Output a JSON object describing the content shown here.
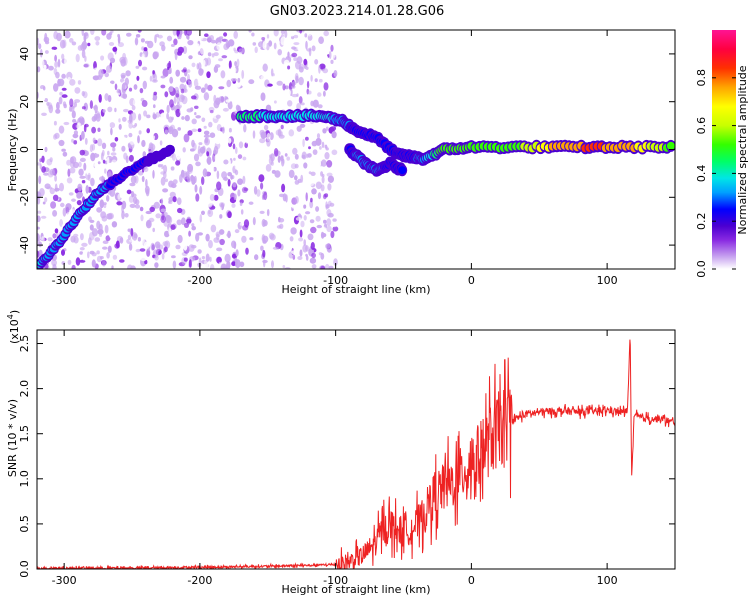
{
  "title": "GN03.2023.214.01.28.G06",
  "chart_data": [
    {
      "type": "heatmap",
      "xlabel": "Height of straight line (km)",
      "ylabel": "Frequency (Hz)",
      "xlim": [
        -320,
        150
      ],
      "ylim": [
        -50,
        50
      ],
      "xticks": [
        -300,
        -200,
        -100,
        0,
        100
      ],
      "yticks": [
        -40,
        -20,
        0,
        20,
        40
      ],
      "colorbar": {
        "label": "Normalized spectral amplitude",
        "range": [
          0,
          1
        ],
        "ticks": [
          "0.0",
          "0.2",
          "0.4",
          "0.6",
          "0.8"
        ],
        "colors": [
          "#ffffff",
          "#c9a6f0",
          "#8a2be2",
          "#4b00d1",
          "#0000ff",
          "#00a0ff",
          "#00e6e6",
          "#00ff66",
          "#33ff00",
          "#c8ff00",
          "#ffff00",
          "#ffa500",
          "#ff3000",
          "#ff0040",
          "#ff1493"
        ]
      },
      "signal_track": [
        {
          "x": -170,
          "f": 14,
          "amp": 0.5
        },
        {
          "x": -150,
          "f": 14,
          "amp": 0.45
        },
        {
          "x": -130,
          "f": 14,
          "amp": 0.45
        },
        {
          "x": -110,
          "f": 14,
          "amp": 0.45
        },
        {
          "x": -95,
          "f": 12,
          "amp": 0.35
        },
        {
          "x": -85,
          "f": 8,
          "amp": 0.3
        },
        {
          "x": -70,
          "f": 5,
          "amp": 0.3
        },
        {
          "x": -55,
          "f": -2,
          "amp": 0.3
        },
        {
          "x": -45,
          "f": -3,
          "amp": 0.3
        },
        {
          "x": -35,
          "f": -4,
          "amp": 0.35
        },
        {
          "x": -20,
          "f": 0,
          "amp": 0.6
        },
        {
          "x": 0,
          "f": 1,
          "amp": 0.6
        },
        {
          "x": 30,
          "f": 1,
          "amp": 0.55
        },
        {
          "x": 60,
          "f": 1,
          "amp": 0.75
        },
        {
          "x": 90,
          "f": 1,
          "amp": 0.85
        },
        {
          "x": 120,
          "f": 1,
          "amp": 0.75
        },
        {
          "x": 150,
          "f": 1,
          "amp": 0.55
        }
      ],
      "secondary_track": [
        {
          "x": -90,
          "f": 0,
          "amp": 0.3
        },
        {
          "x": -80,
          "f": -5,
          "amp": 0.35
        },
        {
          "x": -70,
          "f": -9,
          "amp": 0.35
        },
        {
          "x": -60,
          "f": -6,
          "amp": 0.3
        },
        {
          "x": -50,
          "f": -9,
          "amp": 0.3
        }
      ],
      "rising_track": [
        {
          "x": -318,
          "f": -48,
          "amp": 0.4
        },
        {
          "x": -305,
          "f": -40,
          "amp": 0.35
        },
        {
          "x": -290,
          "f": -28,
          "amp": 0.35
        },
        {
          "x": -275,
          "f": -18,
          "amp": 0.35
        },
        {
          "x": -260,
          "f": -12,
          "amp": 0.3
        },
        {
          "x": -240,
          "f": -5,
          "amp": 0.25
        },
        {
          "x": -220,
          "f": 0,
          "amp": 0.2
        }
      ],
      "noise_region": [
        -320,
        -100
      ]
    },
    {
      "type": "line",
      "xlabel": "Height of straight line (km)",
      "ylabel": "SNR (10 * v/v)",
      "y_multiplier": "(x10",
      "y_multiplier_exp": "4",
      "y_multiplier_close": ")",
      "xlim": [
        -320,
        150
      ],
      "ylim": [
        0,
        2.65
      ],
      "xticks": [
        -300,
        -200,
        -100,
        0,
        100
      ],
      "yticks": [
        "0.0",
        "0.5",
        "1.0",
        "1.5",
        "2.0",
        "2.5"
      ],
      "series": [
        {
          "color": "#ee2222",
          "x": [
            -320,
            -250,
            -200,
            -150,
            -120,
            -100,
            -90,
            -80,
            -70,
            -65,
            -60,
            -55,
            -50,
            -45,
            -40,
            -35,
            -30,
            -25,
            -20,
            -15,
            -10,
            -5,
            0,
            5,
            10,
            15,
            20,
            30,
            40,
            50,
            60,
            70,
            80,
            90,
            100,
            110,
            115,
            117,
            118,
            120,
            125,
            130,
            140,
            150
          ],
          "y": [
            0.01,
            0.01,
            0.02,
            0.03,
            0.04,
            0.05,
            0.08,
            0.15,
            0.3,
            0.45,
            0.5,
            0.45,
            0.4,
            0.45,
            0.5,
            0.6,
            0.75,
            0.85,
            0.9,
            0.95,
            1.0,
            1.1,
            1.2,
            1.25,
            1.35,
            1.45,
            1.55,
            1.65,
            1.72,
            1.74,
            1.75,
            1.75,
            1.74,
            1.75,
            1.76,
            1.74,
            1.75,
            2.65,
            1.0,
            1.7,
            1.68,
            1.67,
            1.66,
            1.62
          ]
        }
      ]
    }
  ]
}
